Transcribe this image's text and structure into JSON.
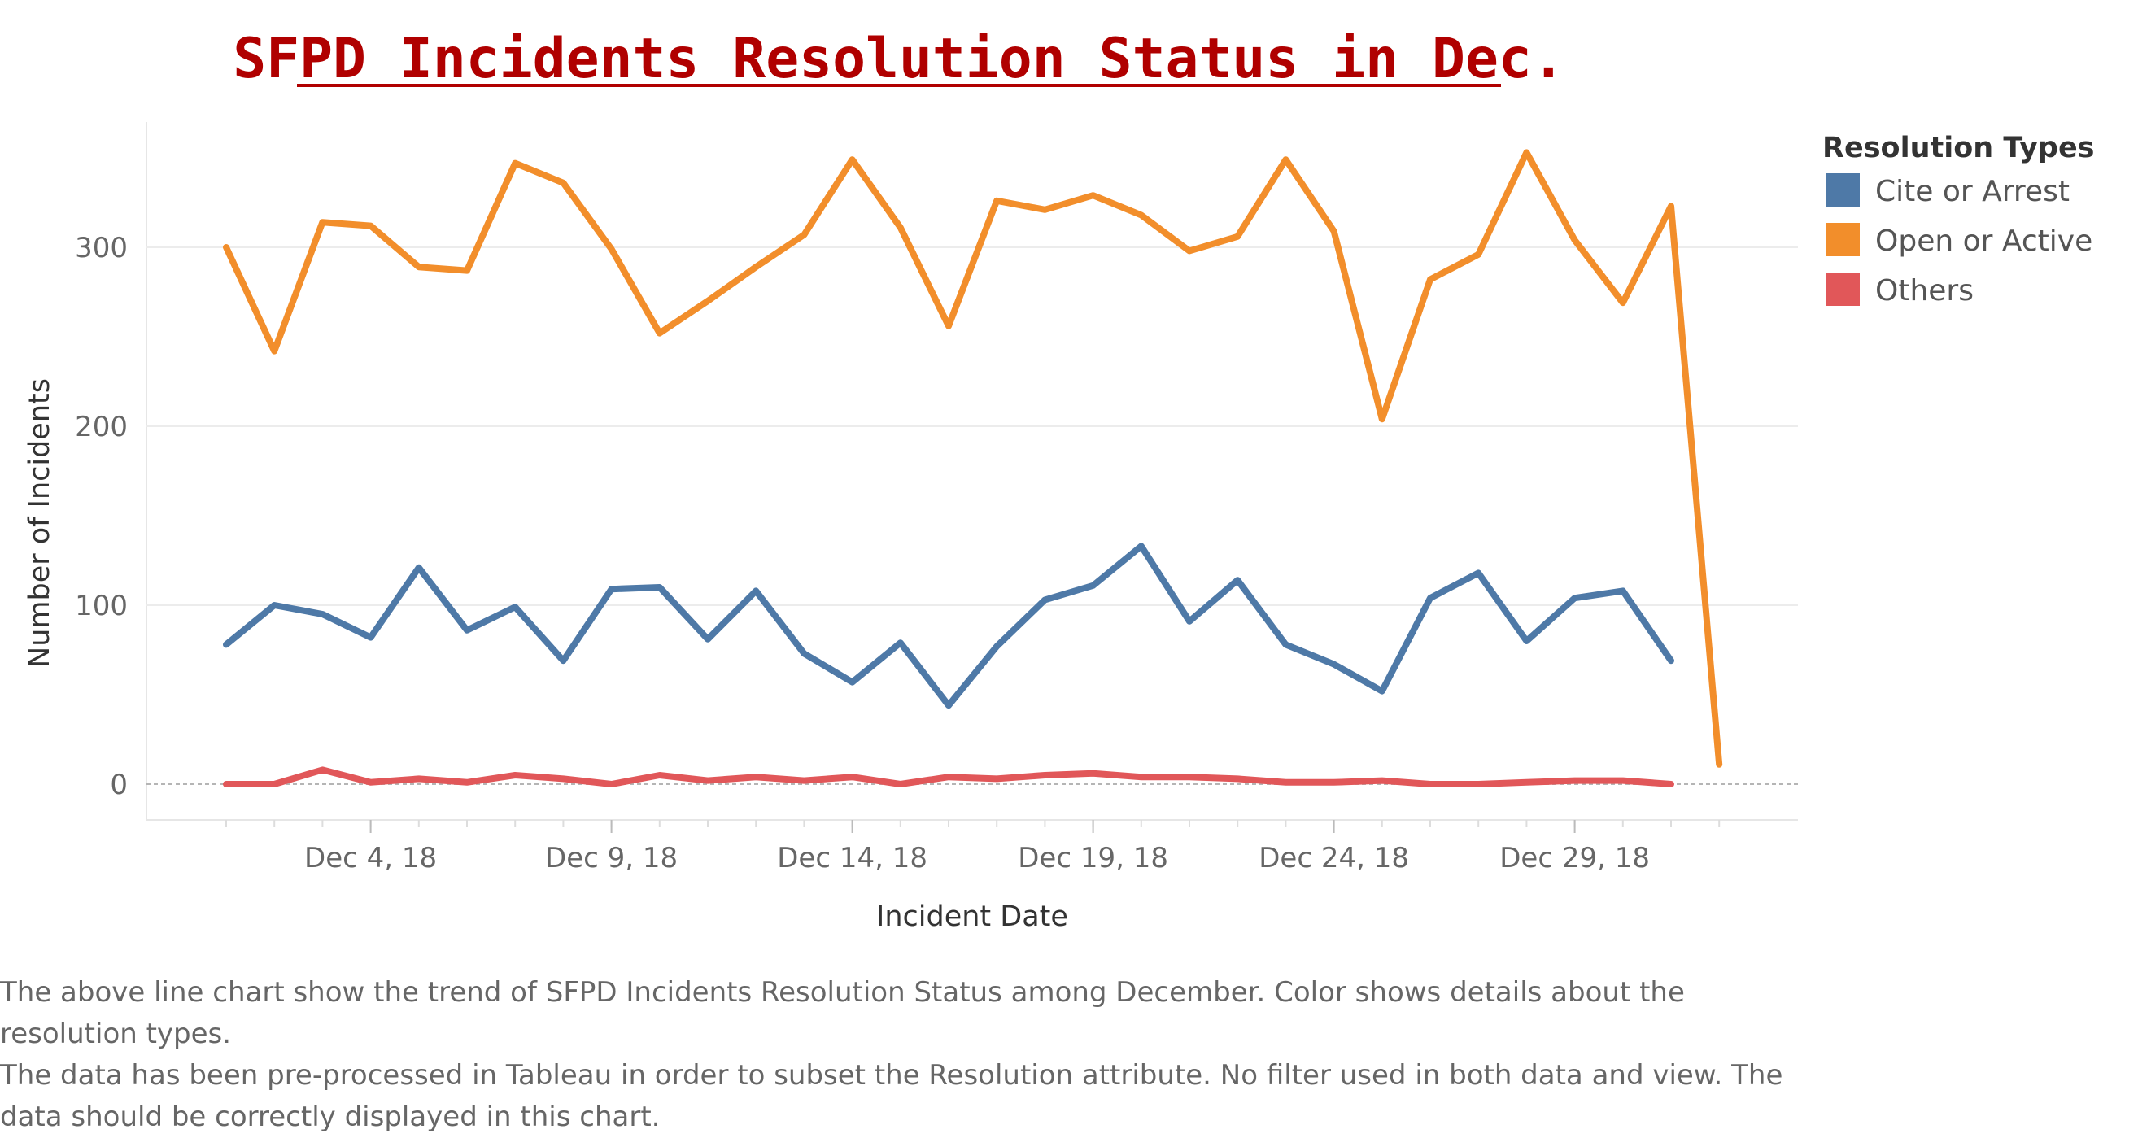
{
  "caption": {
    "paragraph_1": "The above line chart show the trend of SFPD Incidents Resolution Status among December. Color shows details about the resolution types.",
    "paragraph_2": "The data has been pre-processed in Tableau in order to subset the Resolution attribute. No filter used in both data and view. The data should be correctly displayed in this chart."
  },
  "chart_data": {
    "type": "line",
    "title": "SFPD Incidents Resolution Status in Dec.",
    "xlabel": "Incident Date",
    "ylabel": "Number of Incidents",
    "x_range": [
      "Dec 1, 18",
      "Jan 1, 19"
    ],
    "ylim": [
      -20,
      370
    ],
    "yticks": [
      0,
      100,
      200,
      300
    ],
    "xtick_labels": [
      "Dec 4, 18",
      "Dec 9, 18",
      "Dec 14, 18",
      "Dec 19, 18",
      "Dec 24, 18",
      "Dec 29, 18"
    ],
    "xtick_days": [
      4,
      9,
      14,
      19,
      24,
      29
    ],
    "grid": "horizontal",
    "legend": {
      "title": "Resolution Types",
      "placement": "right"
    },
    "x": [
      "Dec 1, 18",
      "Dec 2, 18",
      "Dec 3, 18",
      "Dec 4, 18",
      "Dec 5, 18",
      "Dec 6, 18",
      "Dec 7, 18",
      "Dec 8, 18",
      "Dec 9, 18",
      "Dec 10, 18",
      "Dec 11, 18",
      "Dec 12, 18",
      "Dec 13, 18",
      "Dec 14, 18",
      "Dec 15, 18",
      "Dec 16, 18",
      "Dec 17, 18",
      "Dec 18, 18",
      "Dec 19, 18",
      "Dec 20, 18",
      "Dec 21, 18",
      "Dec 22, 18",
      "Dec 23, 18",
      "Dec 24, 18",
      "Dec 25, 18",
      "Dec 26, 18",
      "Dec 27, 18",
      "Dec 28, 18",
      "Dec 29, 18",
      "Dec 30, 18",
      "Dec 31, 18",
      "Jan 1, 19"
    ],
    "series": [
      {
        "name": "Cite or Arrest",
        "color": "#4e79a7",
        "values": [
          78,
          100,
          95,
          82,
          121,
          86,
          99,
          69,
          109,
          110,
          81,
          108,
          73,
          57,
          79,
          44,
          77,
          103,
          111,
          133,
          91,
          114,
          78,
          67,
          52,
          104,
          118,
          80,
          104,
          108,
          69,
          null
        ]
      },
      {
        "name": "Open or Active",
        "color": "#f28e2b",
        "values": [
          300,
          242,
          314,
          312,
          289,
          287,
          347,
          336,
          299,
          252,
          270,
          289,
          307,
          349,
          311,
          256,
          326,
          321,
          329,
          318,
          298,
          306,
          349,
          309,
          204,
          282,
          296,
          353,
          304,
          269,
          323,
          11
        ]
      },
      {
        "name": "Others",
        "color": "#e15759",
        "values": [
          0,
          0,
          8,
          1,
          3,
          1,
          5,
          3,
          0,
          5,
          2,
          4,
          2,
          4,
          0,
          4,
          3,
          5,
          6,
          4,
          4,
          3,
          1,
          1,
          2,
          0,
          0,
          1,
          2,
          2,
          0,
          null
        ]
      }
    ]
  }
}
